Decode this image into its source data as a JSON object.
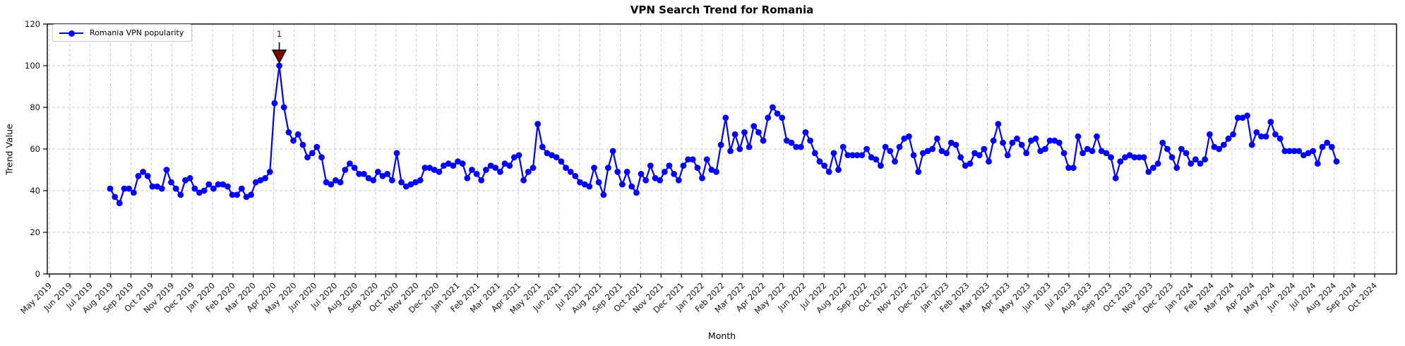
{
  "figure": {
    "title": "VPN Search Trend for Romania",
    "xlabel": "Month",
    "ylabel": "Trend Value",
    "legend_label": "Romania VPN popularity"
  },
  "chart_data": {
    "type": "line",
    "title": "VPN Search Trend for Romania",
    "xlabel": "Month",
    "ylabel": "Trend Value",
    "legend": [
      "Romania VPN popularity"
    ],
    "legend_position": "upper left",
    "grid": true,
    "marker": "circle",
    "line_color": "#0000ff",
    "ylim": [
      0,
      120
    ],
    "y_ticks": [
      0,
      20,
      40,
      60,
      80,
      100,
      120
    ],
    "x_frequency": "weekly",
    "x_start_date": "2019-07-28",
    "x_tick_labels": [
      "May 2019",
      "Jun 2019",
      "Jul 2019",
      "Aug 2019",
      "Sep 2019",
      "Oct 2019",
      "Nov 2019",
      "Dec 2019",
      "Jan 2020",
      "Feb 2020",
      "Mar 2020",
      "Apr 2020",
      "May 2020",
      "Jun 2020",
      "Jul 2020",
      "Aug 2020",
      "Sep 2020",
      "Oct 2020",
      "Nov 2020",
      "Dec 2020",
      "Jan 2021",
      "Feb 2021",
      "Mar 2021",
      "Apr 2021",
      "May 2021",
      "Jun 2021",
      "Jul 2021",
      "Aug 2021",
      "Sep 2021",
      "Oct 2021",
      "Nov 2021",
      "Dec 2021",
      "Jan 2022",
      "Feb 2022",
      "Mar 2022",
      "Apr 2022",
      "May 2022",
      "Jun 2022",
      "Jul 2022",
      "Aug 2022",
      "Sep 2022",
      "Oct 2022",
      "Nov 2022",
      "Dec 2022",
      "Jan 2023",
      "Feb 2023",
      "Mar 2023",
      "Apr 2023",
      "May 2023",
      "Jun 2023",
      "Jul 2023",
      "Aug 2023",
      "Sep 2023",
      "Oct 2023",
      "Nov 2023",
      "Dec 2023",
      "Jan 2024",
      "Feb 2024",
      "Mar 2024",
      "Apr 2024",
      "May 2024",
      "Jun 2024",
      "Jul 2024",
      "Aug 2024",
      "Sep 2024",
      "Oct 2024"
    ],
    "values": [
      41,
      37,
      34,
      41,
      41,
      39,
      47,
      49,
      47,
      42,
      42,
      41,
      50,
      44,
      41,
      38,
      45,
      46,
      41,
      39,
      40,
      43,
      41,
      43,
      43,
      42,
      38,
      38,
      41,
      37,
      38,
      44,
      45,
      46,
      49,
      82,
      100,
      80,
      68,
      64,
      67,
      62,
      56,
      58,
      61,
      56,
      44,
      43,
      45,
      44,
      50,
      53,
      51,
      48,
      48,
      46,
      45,
      49,
      47,
      48,
      45,
      58,
      44,
      42,
      43,
      44,
      45,
      51,
      51,
      50,
      49,
      52,
      53,
      52,
      54,
      53,
      46,
      50,
      48,
      45,
      50,
      52,
      51,
      49,
      53,
      52,
      56,
      57,
      45,
      49,
      51,
      72,
      61,
      58,
      57,
      56,
      54,
      51,
      49,
      47,
      44,
      43,
      42,
      51,
      44,
      38,
      51,
      59,
      49,
      43,
      49,
      42,
      39,
      48,
      45,
      52,
      46,
      45,
      49,
      52,
      48,
      45,
      52,
      55,
      55,
      51,
      46,
      55,
      50,
      49,
      62,
      75,
      59,
      67,
      60,
      68,
      61,
      71,
      68,
      64,
      75,
      80,
      77,
      75,
      64,
      63,
      61,
      61,
      68,
      64,
      58,
      54,
      52,
      49,
      58,
      50,
      61,
      57,
      57,
      57,
      57,
      60,
      56,
      55,
      52,
      61,
      59,
      54,
      61,
      65,
      66,
      57,
      49,
      58,
      59,
      60,
      65,
      59,
      58,
      63,
      62,
      56,
      52,
      53,
      58,
      57,
      60,
      54,
      64,
      72,
      63,
      57,
      63,
      65,
      62,
      58,
      64,
      65,
      59,
      60,
      64,
      64,
      63,
      58,
      51,
      51,
      66,
      58,
      60,
      59,
      66,
      59,
      58,
      56,
      46,
      54,
      56,
      57,
      56,
      56,
      56,
      49,
      51,
      53,
      63,
      60,
      56,
      51,
      60,
      58,
      53,
      55,
      53,
      55,
      67,
      61,
      60,
      62,
      65,
      67,
      75,
      75,
      76,
      62,
      68,
      66,
      66,
      73,
      67,
      65,
      59,
      59,
      59,
      59,
      57,
      58,
      59,
      53,
      61,
      63,
      61,
      54
    ],
    "annotations": [
      {
        "label": "1",
        "x_index": 36,
        "value": 100,
        "color": "#8b0000"
      }
    ]
  }
}
